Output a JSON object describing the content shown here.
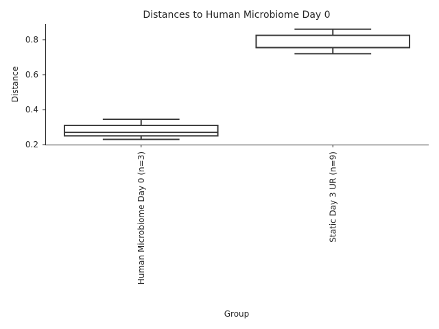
{
  "chart_data": {
    "type": "box",
    "title": "Distances to Human Microbiome Day 0",
    "xlabel": "Group",
    "ylabel": "Distance",
    "ylim": [
      0.2,
      0.89
    ],
    "yticks": [
      "0.2",
      "0.4",
      "0.6",
      "0.8"
    ],
    "grid": false,
    "categories": [
      "Human Microbiome Day 0 (n=3)",
      "Static Day 3 UR (n=9)"
    ],
    "boxes": [
      {
        "whisker_low": 0.23,
        "q1": 0.25,
        "median": 0.27,
        "q3": 0.31,
        "whisker_high": 0.345
      },
      {
        "whisker_low": 0.72,
        "q1": 0.755,
        "median": 0.755,
        "q3": 0.825,
        "whisker_high": 0.86
      }
    ],
    "colors": {
      "box_edge": "#3b3b3b",
      "box_fill": "#ffffff",
      "axis": "#262626"
    }
  }
}
